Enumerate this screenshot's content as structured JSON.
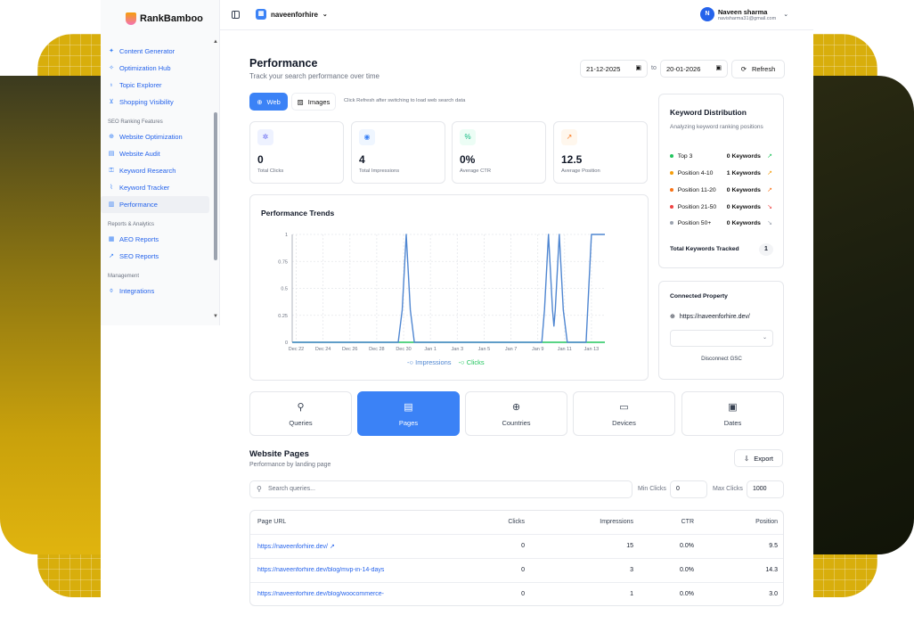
{
  "app": {
    "name": "RankBamboo"
  },
  "sidebar": {
    "items_top": [
      {
        "label": "Content Generator",
        "icon": "sparkles-icon"
      },
      {
        "label": "Optimization Hub",
        "icon": "sparkle-icon"
      },
      {
        "label": "Topic Explorer",
        "icon": "lightbulb-icon"
      },
      {
        "label": "Shopping Visibility",
        "icon": "cart-icon"
      }
    ],
    "section_seo": "SEO Ranking Features",
    "items_seo": [
      {
        "label": "Website Optimization",
        "icon": "globe-icon"
      },
      {
        "label": "Website Audit",
        "icon": "file-icon"
      },
      {
        "label": "Keyword Research",
        "icon": "key-icon"
      },
      {
        "label": "Keyword Tracker",
        "icon": "line-chart-icon"
      },
      {
        "label": "Performance",
        "icon": "bar-chart-icon"
      }
    ],
    "section_reports": "Reports & Analytics",
    "items_reports": [
      {
        "label": "AEO Reports",
        "icon": "file-chart-icon"
      },
      {
        "label": "SEO Reports",
        "icon": "trending-icon"
      }
    ],
    "section_mgmt": "Management",
    "items_mgmt": [
      {
        "label": "Integrations",
        "icon": "plug-icon"
      }
    ]
  },
  "header": {
    "project": "naveenforhire",
    "user_initial": "N",
    "user_name": "Naveen sharma",
    "user_email": "navisharma31@gmail.com"
  },
  "page": {
    "title": "Performance",
    "subtitle": "Track your search performance over time",
    "date_from": "21-12-2025",
    "date_to": "20-01-2026",
    "to_label": "to",
    "refresh_label": "Refresh",
    "tab_web": "Web",
    "tab_images": "Images",
    "tab_note": "Click Refresh after switching to load web search data"
  },
  "stats": [
    {
      "value": "0",
      "label": "Total Clicks",
      "icon": "cursor-click-icon",
      "color": "#6366f1"
    },
    {
      "value": "4",
      "label": "Total Impressions",
      "icon": "eye-icon",
      "color": "#3b82f6"
    },
    {
      "value": "0%",
      "label": "Average CTR",
      "icon": "percent-icon",
      "color": "#10b981"
    },
    {
      "value": "12.5",
      "label": "Average Position",
      "icon": "trending-up-icon",
      "color": "#f97316"
    }
  ],
  "chart_data": {
    "type": "line",
    "title": "Performance Trends",
    "x": [
      "Dec 22",
      "Dec 24",
      "Dec 26",
      "Dec 28",
      "Dec 30",
      "Jan 1",
      "Jan 3",
      "Jan 5",
      "Jan 7",
      "Jan 9",
      "Jan 11",
      "Jan 13"
    ],
    "ylim": [
      0,
      1
    ],
    "yticks": [
      "0",
      "0.25",
      "0.5",
      "0.75",
      "1"
    ],
    "series": [
      {
        "name": "Impressions",
        "color": "#4f86d1",
        "points": [
          [
            0,
            0
          ],
          [
            7.9,
            0
          ],
          [
            8.2,
            0.3
          ],
          [
            8.5,
            1
          ],
          [
            8.8,
            0.3
          ],
          [
            9.1,
            0
          ],
          [
            18.6,
            0
          ],
          [
            18.8,
            0.3
          ],
          [
            19.1,
            1
          ],
          [
            19.4,
            0.3
          ],
          [
            19.5,
            0.15
          ],
          [
            19.6,
            0.3
          ],
          [
            19.9,
            1
          ],
          [
            20.2,
            0.3
          ],
          [
            20.5,
            0
          ],
          [
            21.9,
            0
          ],
          [
            22.3,
            1
          ],
          [
            23.3,
            1
          ]
        ]
      },
      {
        "name": "Clicks",
        "color": "#22c55e",
        "points": [
          [
            0,
            0
          ],
          [
            23.3,
            0
          ]
        ]
      }
    ]
  },
  "keyword_distribution": {
    "title": "Keyword Distribution",
    "subtitle": "Analyzing keyword ranking positions",
    "rows": [
      {
        "name": "Top 3",
        "count": "0 Keywords",
        "color": "#22c55e",
        "trend": "↗",
        "trend_color": "#22c55e"
      },
      {
        "name": "Position 4-10",
        "count": "1 Keywords",
        "color": "#f59e0b",
        "trend": "↗",
        "trend_color": "#f59e0b"
      },
      {
        "name": "Position 11-20",
        "count": "0 Keywords",
        "color": "#f97316",
        "trend": "↗",
        "trend_color": "#f97316"
      },
      {
        "name": "Position 21-50",
        "count": "0 Keywords",
        "color": "#ef4444",
        "trend": "↘",
        "trend_color": "#ef4444"
      },
      {
        "name": "Position 50+",
        "count": "0 Keywords",
        "color": "#9ca3af",
        "trend": "↘",
        "trend_color": "#9ca3af"
      }
    ],
    "total_label": "Total Keywords Tracked",
    "total_value": "1"
  },
  "connected": {
    "title": "Connected Property",
    "url": "https://naveenforhire.dev/",
    "disconnect": "Disconnect GSC"
  },
  "dimension_tabs": [
    {
      "label": "Queries",
      "icon": "search-icon"
    },
    {
      "label": "Pages",
      "icon": "document-icon"
    },
    {
      "label": "Countries",
      "icon": "globe-icon"
    },
    {
      "label": "Devices",
      "icon": "monitor-icon"
    },
    {
      "label": "Dates",
      "icon": "calendar-icon"
    }
  ],
  "website_pages": {
    "title": "Website Pages",
    "subtitle": "Performance by landing page",
    "export": "Export",
    "search_placeholder": "Search queries...",
    "min_clicks_label": "Min Clicks",
    "min_clicks": "0",
    "max_clicks_label": "Max Clicks",
    "max_clicks": "1000",
    "columns": [
      "Page URL",
      "Clicks",
      "Impressions",
      "CTR",
      "Position"
    ],
    "rows": [
      {
        "url": "https://naveenforhire.dev/",
        "clicks": "0",
        "impressions": "15",
        "ctr": "0.0%",
        "position": "9.5"
      },
      {
        "url": "https://naveenforhire.dev/blog/mvp-in-14-days",
        "clicks": "0",
        "impressions": "3",
        "ctr": "0.0%",
        "position": "14.3"
      },
      {
        "url": "https://naveenforhire.dev/blog/woocommerce-",
        "clicks": "0",
        "impressions": "1",
        "ctr": "0.0%",
        "position": "3.0"
      }
    ]
  }
}
